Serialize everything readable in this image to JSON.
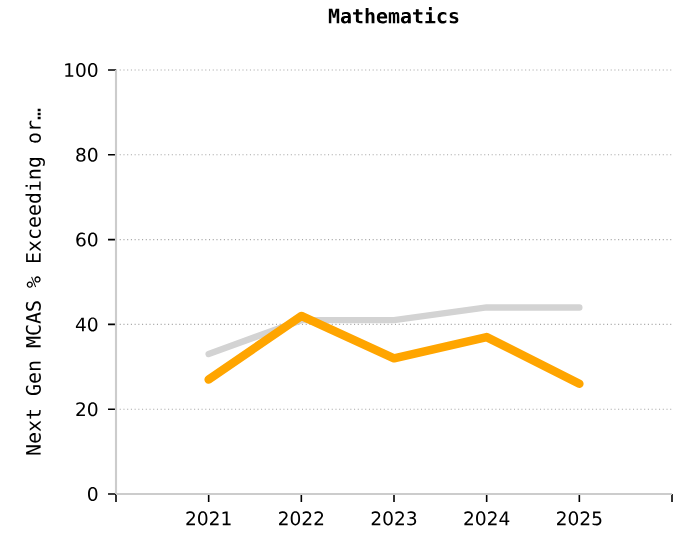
{
  "chart_data": {
    "type": "line",
    "title": "Mathematics",
    "ylabel": "Next Gen MCAS % Exceeding or…",
    "categories": [
      "2021",
      "2022",
      "2023",
      "2024",
      "2025"
    ],
    "series": [
      {
        "color": "#d3d3d3",
        "values": [
          33,
          41,
          41,
          44,
          44
        ]
      },
      {
        "color": "#ffa500",
        "values": [
          27,
          42,
          32,
          37,
          26
        ]
      }
    ],
    "ylim": [
      0,
      100
    ],
    "yticks": [
      0,
      20,
      40,
      60,
      80,
      100
    ],
    "grid": "y"
  }
}
